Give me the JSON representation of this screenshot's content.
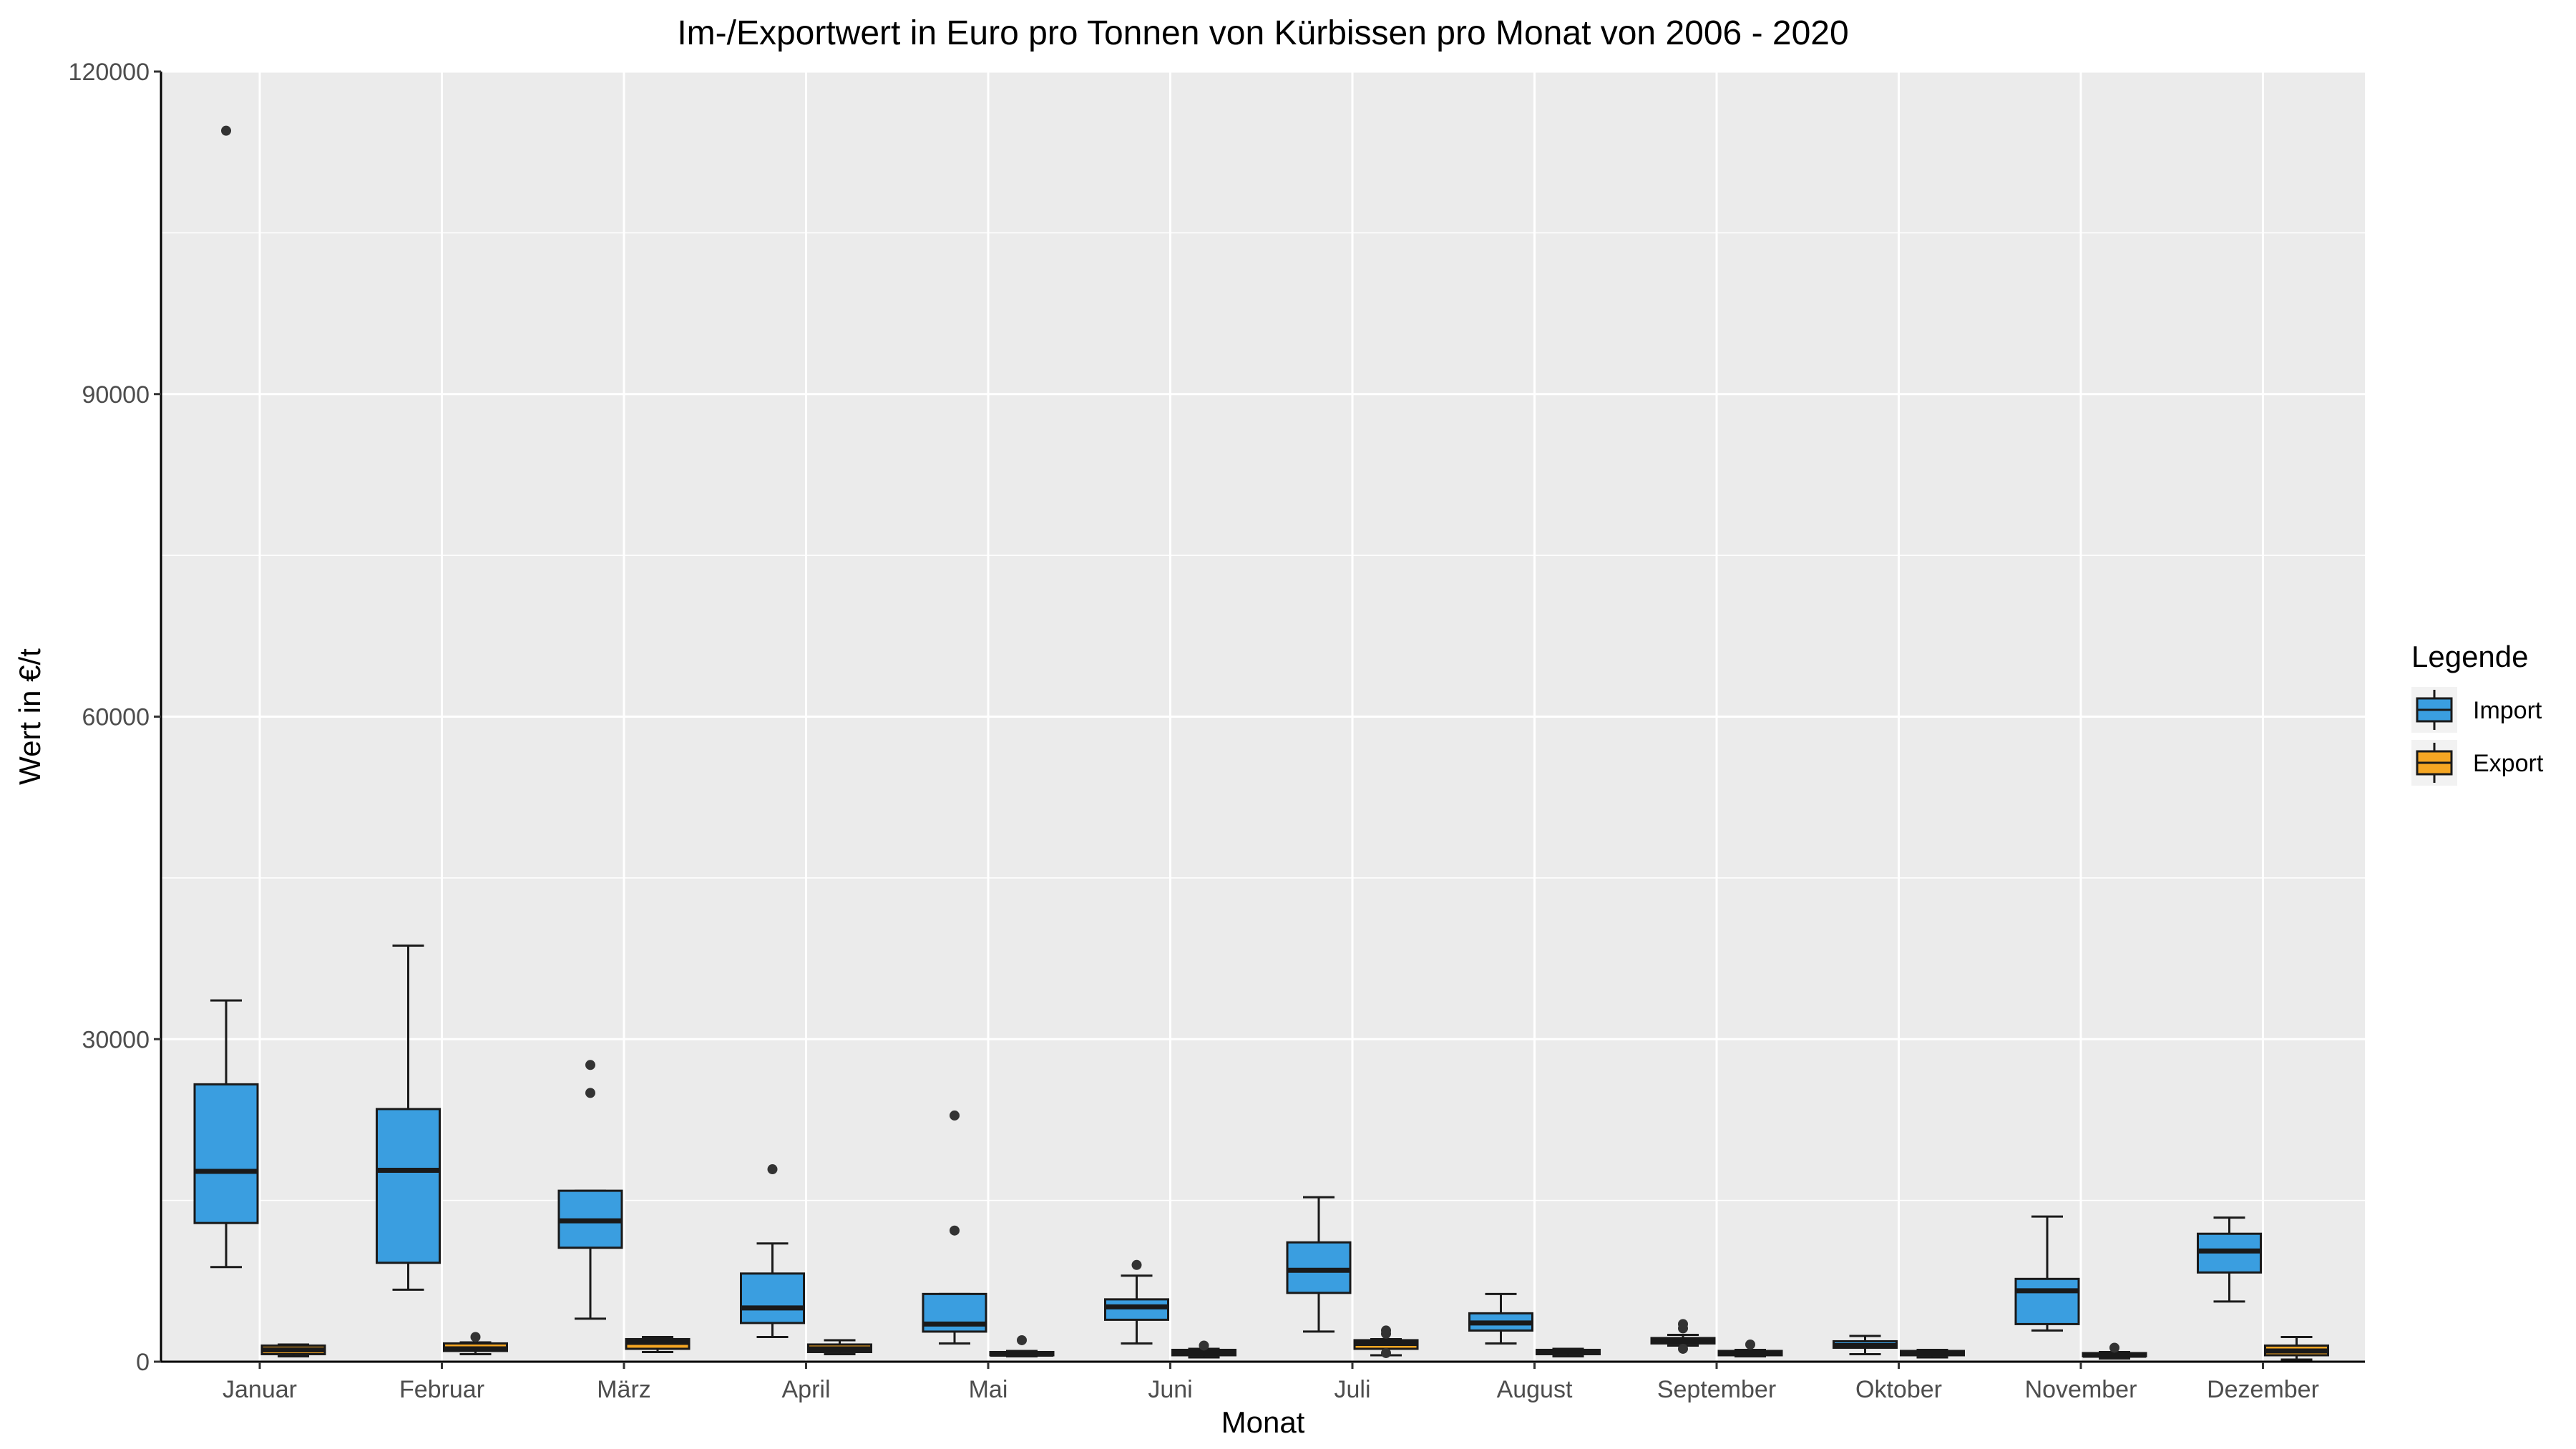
{
  "chart_data": {
    "type": "boxplot",
    "title": "Im-/Exportwert in Euro pro Tonnen von Kürbissen pro Monat von 2006 - 2020",
    "xlabel": "Monat",
    "ylabel": "Wert in €/t",
    "ylim": [
      0,
      120000
    ],
    "yticks": [
      0,
      30000,
      60000,
      90000,
      120000
    ],
    "ytick_labels": [
      "0",
      "30000",
      "60000",
      "90000",
      "120000"
    ],
    "grid": true,
    "legend": {
      "title": "Legende",
      "position": "right"
    },
    "categories": [
      "Januar",
      "Februar",
      "März",
      "April",
      "Mai",
      "Juni",
      "Juli",
      "August",
      "September",
      "Oktober",
      "November",
      "Dezember"
    ],
    "series": [
      {
        "name": "Import",
        "color": "#3a9ee0",
        "boxes": [
          {
            "whisker_low": 8800,
            "q1": 12900,
            "median": 17700,
            "q3": 25800,
            "whisker_high": 33600,
            "outliers": [
              114500
            ]
          },
          {
            "whisker_low": 6700,
            "q1": 9200,
            "median": 17800,
            "q3": 23500,
            "whisker_high": 38700,
            "outliers": []
          },
          {
            "whisker_low": 4000,
            "q1": 10600,
            "median": 13100,
            "q3": 15900,
            "whisker_high": 15900,
            "outliers": [
              25000,
              27600
            ]
          },
          {
            "whisker_low": 2300,
            "q1": 3600,
            "median": 5000,
            "q3": 8200,
            "whisker_high": 11000,
            "outliers": [
              17900
            ]
          },
          {
            "whisker_low": 1700,
            "q1": 2800,
            "median": 3500,
            "q3": 6300,
            "whisker_high": 6300,
            "outliers": [
              12200,
              22900
            ]
          },
          {
            "whisker_low": 1700,
            "q1": 3900,
            "median": 5100,
            "q3": 5800,
            "whisker_high": 8000,
            "outliers": [
              9000
            ]
          },
          {
            "whisker_low": 2800,
            "q1": 6400,
            "median": 8500,
            "q3": 11100,
            "whisker_high": 15300,
            "outliers": []
          },
          {
            "whisker_low": 1700,
            "q1": 2900,
            "median": 3600,
            "q3": 4500,
            "whisker_high": 6300,
            "outliers": []
          },
          {
            "whisker_low": 1500,
            "q1": 1700,
            "median": 2000,
            "q3": 2200,
            "whisker_high": 2500,
            "outliers": [
              1200,
              3100,
              3500
            ]
          },
          {
            "whisker_low": 700,
            "q1": 1300,
            "median": 1500,
            "q3": 1900,
            "whisker_high": 2400,
            "outliers": []
          },
          {
            "whisker_low": 2900,
            "q1": 3500,
            "median": 6600,
            "q3": 7700,
            "whisker_high": 13500,
            "outliers": []
          },
          {
            "whisker_low": 5600,
            "q1": 8300,
            "median": 10300,
            "q3": 11900,
            "whisker_high": 13400,
            "outliers": []
          }
        ]
      },
      {
        "name": "Export",
        "color": "#f5a623",
        "boxes": [
          {
            "whisker_low": 500,
            "q1": 700,
            "median": 1100,
            "q3": 1500,
            "whisker_high": 1600,
            "outliers": []
          },
          {
            "whisker_low": 700,
            "q1": 1000,
            "median": 1200,
            "q3": 1700,
            "whisker_high": 1800,
            "outliers": [
              2300
            ]
          },
          {
            "whisker_low": 900,
            "q1": 1200,
            "median": 1800,
            "q3": 2100,
            "whisker_high": 2300,
            "outliers": []
          },
          {
            "whisker_low": 700,
            "q1": 900,
            "median": 1200,
            "q3": 1600,
            "whisker_high": 2000,
            "outliers": []
          },
          {
            "whisker_low": 500,
            "q1": 600,
            "median": 700,
            "q3": 900,
            "whisker_high": 1000,
            "outliers": [
              2000
            ]
          },
          {
            "whisker_low": 400,
            "q1": 600,
            "median": 800,
            "q3": 1100,
            "whisker_high": 1200,
            "outliers": [
              1500
            ]
          },
          {
            "whisker_low": 600,
            "q1": 1200,
            "median": 1700,
            "q3": 2000,
            "whisker_high": 2100,
            "outliers": [
              800,
              2600,
              2900
            ]
          },
          {
            "whisker_low": 500,
            "q1": 700,
            "median": 900,
            "q3": 1100,
            "whisker_high": 1200,
            "outliers": []
          },
          {
            "whisker_low": 500,
            "q1": 600,
            "median": 800,
            "q3": 1000,
            "whisker_high": 1100,
            "outliers": [
              1600
            ]
          },
          {
            "whisker_low": 400,
            "q1": 600,
            "median": 800,
            "q3": 1000,
            "whisker_high": 1100,
            "outliers": []
          },
          {
            "whisker_low": 300,
            "q1": 500,
            "median": 600,
            "q3": 800,
            "whisker_high": 900,
            "outliers": [
              1300
            ]
          },
          {
            "whisker_low": 200,
            "q1": 600,
            "median": 1000,
            "q3": 1500,
            "whisker_high": 2300,
            "outliers": []
          }
        ]
      }
    ]
  }
}
